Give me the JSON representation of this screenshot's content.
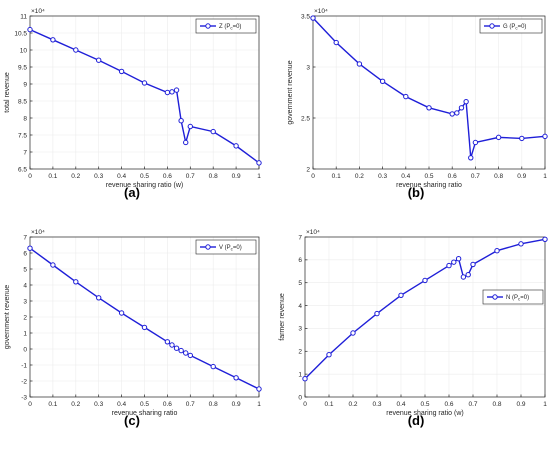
{
  "colors": {
    "series": "#1f1fd8",
    "axis": "#262626",
    "grid": "#ececec",
    "legend_border": "#262626"
  },
  "chart_data": [
    {
      "type": "line",
      "panel_label": "(a)",
      "ylabel": "total revenue",
      "xlabel": "revenue sharing ratio (w)",
      "exponent_label": "×10⁴",
      "xlim": [
        0,
        1
      ],
      "ylim": [
        6.5,
        11
      ],
      "xticks": [
        0,
        0.1,
        0.2,
        0.3,
        0.4,
        0.5,
        0.6,
        0.7,
        0.8,
        0.9,
        1
      ],
      "xtick_labels": [
        "0",
        "0.1",
        "0.2",
        "0.3",
        "0.4",
        "0.5",
        "0.6",
        "0.7",
        "0.8",
        "0.9",
        "1"
      ],
      "yticks": [
        6.5,
        7,
        7.5,
        8,
        8.5,
        9,
        9.5,
        10,
        10.5,
        11
      ],
      "ytick_labels": [
        "6.5",
        "7",
        "7.5",
        "8",
        "8.5",
        "9",
        "9.5",
        "10",
        "10.5",
        "11"
      ],
      "legend_position": "top-right",
      "series": [
        {
          "name": "Z (P_c=0)",
          "name_main": "Z (P",
          "name_sub": "c",
          "name_tail": "=0)",
          "x": [
            0,
            0.1,
            0.2,
            0.3,
            0.4,
            0.5,
            0.6,
            0.62,
            0.64,
            0.66,
            0.68,
            0.7,
            0.8,
            0.9,
            1
          ],
          "y": [
            10.6,
            10.3,
            10.0,
            9.7,
            9.37,
            9.03,
            8.75,
            8.77,
            8.82,
            7.92,
            7.28,
            7.75,
            7.6,
            7.18,
            6.68
          ]
        }
      ]
    },
    {
      "type": "line",
      "panel_label": "(b)",
      "ylabel": "government revenue",
      "xlabel": "revenue sharing ratio",
      "exponent_label": "×10⁴",
      "xlim": [
        0,
        1
      ],
      "ylim": [
        2,
        3.5
      ],
      "xticks": [
        0,
        0.1,
        0.2,
        0.3,
        0.4,
        0.5,
        0.6,
        0.7,
        0.8,
        0.9,
        1
      ],
      "xtick_labels": [
        "0",
        "0.1",
        "0.2",
        "0.3",
        "0.4",
        "0.5",
        "0.6",
        "0.7",
        "0.8",
        "0.9",
        "1"
      ],
      "yticks": [
        2,
        2.5,
        3,
        3.5
      ],
      "ytick_labels": [
        "2",
        "2.5",
        "3",
        "3.5"
      ],
      "legend_position": "top-right",
      "series": [
        {
          "name": "G (P_c=0)",
          "name_main": "G (P",
          "name_sub": "c",
          "name_tail": "=0)",
          "x": [
            0,
            0.1,
            0.2,
            0.3,
            0.4,
            0.5,
            0.6,
            0.62,
            0.64,
            0.66,
            0.68,
            0.7,
            0.8,
            0.9,
            1
          ],
          "y": [
            3.48,
            3.24,
            3.03,
            2.86,
            2.71,
            2.6,
            2.54,
            2.55,
            2.6,
            2.66,
            2.11,
            2.26,
            2.31,
            2.3,
            2.32
          ]
        }
      ]
    },
    {
      "type": "line",
      "panel_label": "(c)",
      "ylabel": "government revenue",
      "xlabel": "revenue sharing ratio",
      "exponent_label": "×10⁴",
      "xlim": [
        0,
        1
      ],
      "ylim": [
        -3,
        7
      ],
      "xticks": [
        0,
        0.1,
        0.2,
        0.3,
        0.4,
        0.5,
        0.6,
        0.7,
        0.8,
        0.9,
        1
      ],
      "xtick_labels": [
        "0",
        "0.1",
        "0.2",
        "0.3",
        "0.4",
        "0.5",
        "0.6",
        "0.7",
        "0.8",
        "0.9",
        "1"
      ],
      "yticks": [
        -3,
        -2,
        -1,
        0,
        1,
        2,
        3,
        4,
        5,
        6,
        7
      ],
      "ytick_labels": [
        "-3",
        "-2",
        "-1",
        "0",
        "1",
        "2",
        "3",
        "4",
        "5",
        "6",
        "7"
      ],
      "legend_position": "top-right",
      "series": [
        {
          "name": "V (P_c=0)",
          "name_main": "V (P",
          "name_sub": "c",
          "name_tail": "=0)",
          "x": [
            0,
            0.1,
            0.2,
            0.3,
            0.4,
            0.5,
            0.6,
            0.62,
            0.64,
            0.66,
            0.68,
            0.7,
            0.8,
            0.9,
            1
          ],
          "y": [
            6.3,
            5.25,
            4.2,
            3.2,
            2.25,
            1.35,
            0.45,
            0.25,
            0.05,
            -0.1,
            -0.25,
            -0.4,
            -1.1,
            -1.8,
            -2.5
          ]
        }
      ]
    },
    {
      "type": "line",
      "panel_label": "(d)",
      "ylabel": "farmer revenue",
      "xlabel": "revenue sharing ratio (w)",
      "exponent_label": "×10⁴",
      "xlim": [
        0,
        1
      ],
      "ylim": [
        0,
        7
      ],
      "xticks": [
        0,
        0.1,
        0.2,
        0.3,
        0.4,
        0.5,
        0.6,
        0.7,
        0.8,
        0.9,
        1
      ],
      "xtick_labels": [
        "0",
        "0.1",
        "0.2",
        "0.3",
        "0.4",
        "0.5",
        "0.6",
        "0.7",
        "0.8",
        "0.9",
        "1"
      ],
      "yticks": [
        0,
        1,
        2,
        3,
        4,
        5,
        6,
        7
      ],
      "ytick_labels": [
        "0",
        "1",
        "2",
        "3",
        "4",
        "5",
        "6",
        "7"
      ],
      "legend_position": "middle-right",
      "series": [
        {
          "name": "N (P_c=0)",
          "name_main": "N (P",
          "name_sub": "c",
          "name_tail": "=0)",
          "x": [
            0,
            0.1,
            0.2,
            0.3,
            0.4,
            0.5,
            0.6,
            0.62,
            0.64,
            0.66,
            0.68,
            0.7,
            0.8,
            0.9,
            1
          ],
          "y": [
            0.8,
            1.85,
            2.8,
            3.65,
            4.45,
            5.1,
            5.75,
            5.9,
            6.05,
            5.25,
            5.35,
            5.8,
            6.4,
            6.7,
            6.9
          ]
        }
      ]
    }
  ]
}
